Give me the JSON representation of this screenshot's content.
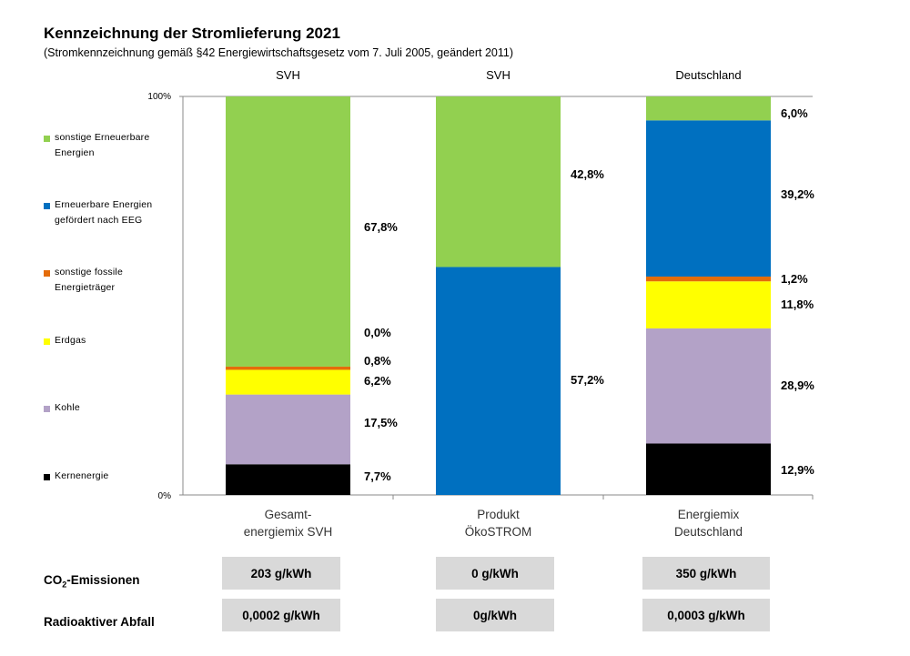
{
  "title": "Kennzeichnung der Stromlieferung 2021",
  "subtitle": "(Stromkennzeichnung gemäß §42 Energiewirtschaftsgesetz vom 7. Juli 2005, geändert 2011)",
  "legend": [
    {
      "label": "sonstige Erneuerbare Energien",
      "color": "#92d050"
    },
    {
      "label": "Erneuerbare Energien gefördert nach EEG",
      "color": "#0070c0"
    },
    {
      "label": "sonstige fossile Energieträger",
      "color": "#e46c0a"
    },
    {
      "label": "Erdgas",
      "color": "#ffff00"
    },
    {
      "label": "Kohle",
      "color": "#b3a2c7"
    },
    {
      "label": "Kernenergie",
      "color": "#000000"
    }
  ],
  "chart_data": {
    "type": "bar",
    "stacked": true,
    "categories": [
      "Gesamt-energiemix SVH",
      "Produkt ÖkoSTROM",
      "Energiemix Deutschland"
    ],
    "category_lines": [
      [
        "Gesamt-",
        "energiemix SVH"
      ],
      [
        "Produkt",
        "ÖkoSTROM"
      ],
      [
        "Energiemix",
        "Deutschland"
      ]
    ],
    "column_headers": [
      "SVH",
      "SVH",
      "Deutschland"
    ],
    "ylim": [
      0,
      100
    ],
    "y_tick_labels": [
      "0%",
      "100%"
    ],
    "series": [
      {
        "name": "Kernenergie",
        "values": [
          7.7,
          0,
          12.9
        ],
        "labels": [
          "7,7%",
          "",
          "12,9%"
        ]
      },
      {
        "name": "Kohle",
        "values": [
          17.5,
          0,
          28.9
        ],
        "labels": [
          "17,5%",
          "",
          "28,9%"
        ]
      },
      {
        "name": "Erdgas",
        "values": [
          6.2,
          0,
          11.8
        ],
        "labels": [
          "6,2%",
          "",
          "11,8%"
        ]
      },
      {
        "name": "sonstige fossile Energieträger",
        "values": [
          0.8,
          0,
          1.2
        ],
        "labels": [
          "0,8%",
          "",
          "1,2%"
        ]
      },
      {
        "name": "Erneuerbare Energien gefördert nach EEG",
        "values": [
          0.0,
          57.2,
          39.2
        ],
        "labels": [
          "0,0%",
          "57,2%",
          "39,2%"
        ]
      },
      {
        "name": "sonstige Erneuerbare Energien",
        "values": [
          67.8,
          42.8,
          6.0
        ],
        "labels": [
          "67,8%",
          "42,8%",
          "6,0%"
        ]
      }
    ]
  },
  "emissions": {
    "co2_label_prefix": "CO",
    "co2_label_sub": "2",
    "co2_label_suffix": "-Emissionen",
    "co2_values": [
      "203 g/kWh",
      "0 g/kWh",
      "350 g/kWh"
    ],
    "waste_label": "Radioaktiver Abfall",
    "waste_values": [
      "0,0002 g/kWh",
      "0g/kWh",
      "0,0003 g/kWh"
    ]
  }
}
